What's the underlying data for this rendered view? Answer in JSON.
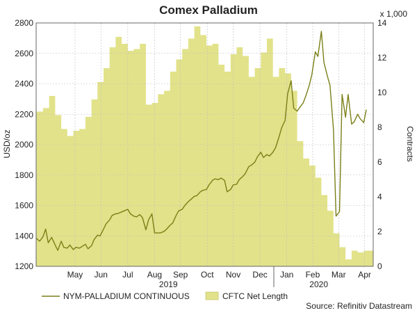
{
  "chart_data": {
    "type": "area",
    "title": "Comex Palladium",
    "ylabel_left": "USD/oz",
    "ylabel_right": "Contracts",
    "right_axis_multiplier": "x 1,000",
    "yleft_range": [
      1200,
      2800
    ],
    "yleft_ticks": [
      "1200",
      "1400",
      "1600",
      "1800",
      "2000",
      "2200",
      "2400",
      "2600",
      "2800"
    ],
    "yright_range": [
      0,
      14
    ],
    "yright_ticks": [
      "0",
      "2",
      "4",
      "6",
      "8",
      "10",
      "12",
      "14"
    ],
    "x_range": [
      "2019-04-01",
      "2020-04-25"
    ],
    "month_labels": [
      {
        "label": "May",
        "date": "2019-05-16"
      },
      {
        "label": "Jun",
        "date": "2019-06-15"
      },
      {
        "label": "Jul",
        "date": "2019-07-16"
      },
      {
        "label": "Aug",
        "date": "2019-08-16"
      },
      {
        "label": "Sep",
        "date": "2019-09-15"
      },
      {
        "label": "Oct",
        "date": "2019-10-16"
      },
      {
        "label": "Nov",
        "date": "2019-11-15"
      },
      {
        "label": "Dec",
        "date": "2019-12-16"
      },
      {
        "label": "Jan",
        "date": "2020-01-16"
      },
      {
        "label": "Feb",
        "date": "2020-02-15"
      },
      {
        "label": "Mar",
        "date": "2020-03-16"
      },
      {
        "label": "Apr",
        "date": "2020-04-15"
      }
    ],
    "year_labels": [
      {
        "label": "2019",
        "date": "2019-09-01"
      },
      {
        "label": "2020",
        "date": "2020-02-22"
      }
    ],
    "year_dividers": [
      "2020-01-01"
    ],
    "grid": true,
    "legend_position": "bottom",
    "series": [
      {
        "name": "NYM-PALLADIUM CONTINUOUS",
        "type": "line",
        "axis": "left",
        "color": "#7a7f17",
        "points": [
          [
            "2019-04-01",
            1385
          ],
          [
            "2019-04-05",
            1365
          ],
          [
            "2019-04-09",
            1395
          ],
          [
            "2019-04-12",
            1445
          ],
          [
            "2019-04-15",
            1355
          ],
          [
            "2019-04-19",
            1390
          ],
          [
            "2019-04-23",
            1340
          ],
          [
            "2019-04-26",
            1305
          ],
          [
            "2019-04-30",
            1365
          ],
          [
            "2019-05-03",
            1325
          ],
          [
            "2019-05-07",
            1320
          ],
          [
            "2019-05-10",
            1340
          ],
          [
            "2019-05-14",
            1310
          ],
          [
            "2019-05-17",
            1325
          ],
          [
            "2019-05-21",
            1320
          ],
          [
            "2019-05-24",
            1330
          ],
          [
            "2019-05-28",
            1345
          ],
          [
            "2019-05-31",
            1315
          ],
          [
            "2019-06-04",
            1335
          ],
          [
            "2019-06-07",
            1375
          ],
          [
            "2019-06-11",
            1405
          ],
          [
            "2019-06-14",
            1400
          ],
          [
            "2019-06-18",
            1445
          ],
          [
            "2019-06-21",
            1480
          ],
          [
            "2019-06-25",
            1505
          ],
          [
            "2019-06-28",
            1535
          ],
          [
            "2019-07-02",
            1545
          ],
          [
            "2019-07-05",
            1548
          ],
          [
            "2019-07-09",
            1558
          ],
          [
            "2019-07-12",
            1565
          ],
          [
            "2019-07-16",
            1575
          ],
          [
            "2019-07-19",
            1545
          ],
          [
            "2019-07-23",
            1530
          ],
          [
            "2019-07-26",
            1525
          ],
          [
            "2019-07-30",
            1540
          ],
          [
            "2019-08-02",
            1520
          ],
          [
            "2019-08-06",
            1440
          ],
          [
            "2019-08-09",
            1505
          ],
          [
            "2019-08-13",
            1545
          ],
          [
            "2019-08-16",
            1420
          ],
          [
            "2019-08-20",
            1420
          ],
          [
            "2019-08-23",
            1420
          ],
          [
            "2019-08-27",
            1430
          ],
          [
            "2019-08-30",
            1445
          ],
          [
            "2019-09-03",
            1470
          ],
          [
            "2019-09-06",
            1485
          ],
          [
            "2019-09-10",
            1535
          ],
          [
            "2019-09-13",
            1565
          ],
          [
            "2019-09-17",
            1575
          ],
          [
            "2019-09-20",
            1600
          ],
          [
            "2019-09-24",
            1625
          ],
          [
            "2019-09-27",
            1640
          ],
          [
            "2019-10-01",
            1660
          ],
          [
            "2019-10-04",
            1665
          ],
          [
            "2019-10-08",
            1690
          ],
          [
            "2019-10-11",
            1700
          ],
          [
            "2019-10-15",
            1705
          ],
          [
            "2019-10-18",
            1735
          ],
          [
            "2019-10-22",
            1765
          ],
          [
            "2019-10-25",
            1775
          ],
          [
            "2019-10-29",
            1770
          ],
          [
            "2019-11-01",
            1780
          ],
          [
            "2019-11-05",
            1765
          ],
          [
            "2019-11-08",
            1690
          ],
          [
            "2019-11-12",
            1705
          ],
          [
            "2019-11-15",
            1735
          ],
          [
            "2019-11-19",
            1740
          ],
          [
            "2019-11-22",
            1770
          ],
          [
            "2019-11-26",
            1790
          ],
          [
            "2019-11-29",
            1810
          ],
          [
            "2019-12-03",
            1855
          ],
          [
            "2019-12-06",
            1865
          ],
          [
            "2019-12-10",
            1885
          ],
          [
            "2019-12-13",
            1920
          ],
          [
            "2019-12-17",
            1950
          ],
          [
            "2019-12-20",
            1915
          ],
          [
            "2019-12-24",
            1935
          ],
          [
            "2019-12-27",
            1925
          ],
          [
            "2019-12-31",
            1950
          ],
          [
            "2020-01-03",
            1980
          ],
          [
            "2020-01-07",
            2050
          ],
          [
            "2020-01-10",
            2110
          ],
          [
            "2020-01-14",
            2160
          ],
          [
            "2020-01-17",
            2335
          ],
          [
            "2020-01-21",
            2420
          ],
          [
            "2020-01-24",
            2240
          ],
          [
            "2020-01-28",
            2220
          ],
          [
            "2020-01-31",
            2245
          ],
          [
            "2020-02-04",
            2275
          ],
          [
            "2020-02-07",
            2320
          ],
          [
            "2020-02-11",
            2390
          ],
          [
            "2020-02-14",
            2460
          ],
          [
            "2020-02-18",
            2610
          ],
          [
            "2020-02-21",
            2580
          ],
          [
            "2020-02-25",
            2745
          ],
          [
            "2020-02-28",
            2540
          ],
          [
            "2020-03-03",
            2450
          ],
          [
            "2020-03-06",
            2390
          ],
          [
            "2020-03-10",
            2100
          ],
          [
            "2020-03-13",
            1530
          ],
          [
            "2020-03-17",
            1560
          ],
          [
            "2020-03-20",
            2330
          ],
          [
            "2020-03-24",
            2180
          ],
          [
            "2020-03-27",
            2330
          ],
          [
            "2020-03-31",
            2135
          ],
          [
            "2020-04-03",
            2150
          ],
          [
            "2020-04-07",
            2200
          ],
          [
            "2020-04-10",
            2170
          ],
          [
            "2020-04-14",
            2145
          ],
          [
            "2020-04-17",
            2230
          ]
        ]
      },
      {
        "name": "CFTC Net Length",
        "type": "area",
        "axis": "right",
        "color": "#e2e28a",
        "points": [
          [
            "2019-04-01",
            8.9
          ],
          [
            "2019-04-09",
            9.1
          ],
          [
            "2019-04-16",
            9.8
          ],
          [
            "2019-04-23",
            8.7
          ],
          [
            "2019-04-30",
            7.9
          ],
          [
            "2019-05-07",
            7.5
          ],
          [
            "2019-05-14",
            7.8
          ],
          [
            "2019-05-21",
            7.9
          ],
          [
            "2019-05-28",
            8.6
          ],
          [
            "2019-06-04",
            9.6
          ],
          [
            "2019-06-11",
            10.6
          ],
          [
            "2019-06-18",
            11.4
          ],
          [
            "2019-06-25",
            12.6
          ],
          [
            "2019-07-02",
            13.2
          ],
          [
            "2019-07-09",
            12.8
          ],
          [
            "2019-07-16",
            12.4
          ],
          [
            "2019-07-23",
            12.5
          ],
          [
            "2019-07-30",
            12.8
          ],
          [
            "2019-08-06",
            9.3
          ],
          [
            "2019-08-13",
            9.4
          ],
          [
            "2019-08-20",
            9.9
          ],
          [
            "2019-08-27",
            10.1
          ],
          [
            "2019-09-03",
            11.2
          ],
          [
            "2019-09-10",
            11.9
          ],
          [
            "2019-09-17",
            12.5
          ],
          [
            "2019-09-24",
            13.1
          ],
          [
            "2019-10-01",
            13.8
          ],
          [
            "2019-10-08",
            13.3
          ],
          [
            "2019-10-15",
            12.7
          ],
          [
            "2019-10-22",
            12.8
          ],
          [
            "2019-10-29",
            11.6
          ],
          [
            "2019-11-05",
            11.2
          ],
          [
            "2019-11-12",
            12.2
          ],
          [
            "2019-11-19",
            12.6
          ],
          [
            "2019-11-26",
            12.1
          ],
          [
            "2019-12-03",
            10.9
          ],
          [
            "2019-12-10",
            11.4
          ],
          [
            "2019-12-17",
            12.3
          ],
          [
            "2019-12-24",
            13.1
          ],
          [
            "2019-12-31",
            10.9
          ],
          [
            "2020-01-07",
            11.4
          ],
          [
            "2020-01-14",
            11.1
          ],
          [
            "2020-01-21",
            10.1
          ],
          [
            "2020-01-28",
            7.2
          ],
          [
            "2020-02-04",
            6.2
          ],
          [
            "2020-02-11",
            5.8
          ],
          [
            "2020-02-18",
            5.1
          ],
          [
            "2020-02-25",
            4.1
          ],
          [
            "2020-03-03",
            3.2
          ],
          [
            "2020-03-10",
            1.9
          ],
          [
            "2020-03-17",
            1.1
          ],
          [
            "2020-03-24",
            0.4
          ],
          [
            "2020-03-31",
            0.9
          ],
          [
            "2020-04-07",
            0.8
          ],
          [
            "2020-04-14",
            0.9
          ],
          [
            "2020-04-21",
            0.9
          ]
        ]
      }
    ]
  },
  "source": "Source: Refinitiv Datastream"
}
